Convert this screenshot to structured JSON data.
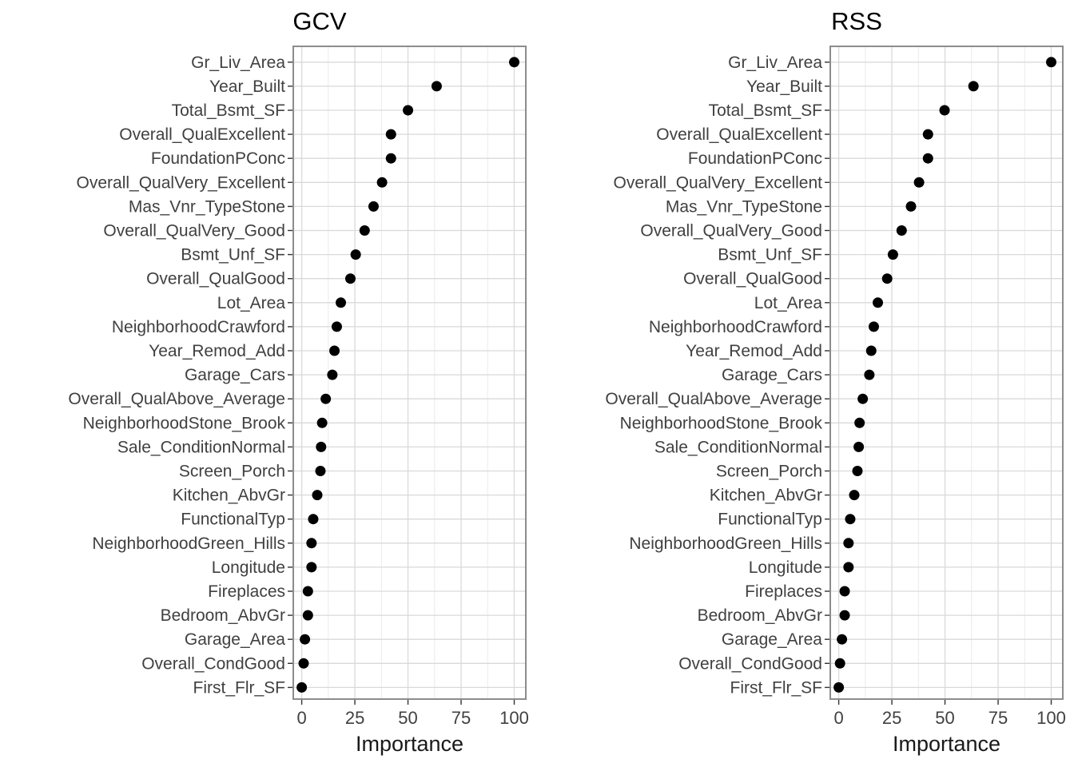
{
  "figure": {
    "background": "#ffffff",
    "panel_count": 2
  },
  "chart_data": [
    {
      "type": "scatter",
      "subtype": "cleveland-dot-plot",
      "title": "GCV",
      "xlabel": "Importance",
      "ylabel": "",
      "xlim": [
        0,
        100
      ],
      "xticks": [
        0,
        25,
        50,
        75,
        100
      ],
      "grid": "major-and-minor-x, major-y",
      "legend_position": "none",
      "categories": [
        "Gr_Liv_Area",
        "Year_Built",
        "Total_Bsmt_SF",
        "Overall_QualExcellent",
        "FoundationPConc",
        "Overall_QualVery_Excellent",
        "Mas_Vnr_TypeStone",
        "Overall_QualVery_Good",
        "Bsmt_Unf_SF",
        "Overall_QualGood",
        "Lot_Area",
        "NeighborhoodCrawford",
        "Year_Remod_Add",
        "Garage_Cars",
        "Overall_QualAbove_Average",
        "NeighborhoodStone_Brook",
        "Sale_ConditionNormal",
        "Screen_Porch",
        "Kitchen_AbvGr",
        "FunctionalTyp",
        "NeighborhoodGreen_Hills",
        "Longitude",
        "Fireplaces",
        "Bedroom_AbvGr",
        "Garage_Area",
        "Overall_CondGood",
        "First_Flr_SF"
      ],
      "values": [
        100,
        63.5,
        50,
        42,
        42,
        37.8,
        33.8,
        29.6,
        25.4,
        22.9,
        18.4,
        16.5,
        15.4,
        14.4,
        11.3,
        9.6,
        9.1,
        8.8,
        7.3,
        5.4,
        4.6,
        4.6,
        2.9,
        2.9,
        1.5,
        0.9,
        0
      ],
      "colors": {
        "dot": "#000000",
        "title_text": "#000000",
        "axis_text": "#404040",
        "axis_title_text": "#1a1a1a",
        "panel_border": "#8c8c8c",
        "grid_major": "#d9d9d9",
        "grid_minor": "#ebebeb",
        "tick_mark": "#333333",
        "panel_background": "#ffffff"
      }
    },
    {
      "type": "scatter",
      "subtype": "cleveland-dot-plot",
      "title": "RSS",
      "xlabel": "Importance",
      "ylabel": "",
      "xlim": [
        0,
        100
      ],
      "xticks": [
        0,
        25,
        50,
        75,
        100
      ],
      "grid": "major-and-minor-x, major-y",
      "legend_position": "none",
      "categories": [
        "Gr_Liv_Area",
        "Year_Built",
        "Total_Bsmt_SF",
        "Overall_QualExcellent",
        "FoundationPConc",
        "Overall_QualVery_Excellent",
        "Mas_Vnr_TypeStone",
        "Overall_QualVery_Good",
        "Bsmt_Unf_SF",
        "Overall_QualGood",
        "Lot_Area",
        "NeighborhoodCrawford",
        "Year_Remod_Add",
        "Garage_Cars",
        "Overall_QualAbove_Average",
        "NeighborhoodStone_Brook",
        "Sale_ConditionNormal",
        "Screen_Porch",
        "Kitchen_AbvGr",
        "FunctionalTyp",
        "NeighborhoodGreen_Hills",
        "Longitude",
        "Fireplaces",
        "Bedroom_AbvGr",
        "Garage_Area",
        "Overall_CondGood",
        "First_Flr_SF"
      ],
      "values": [
        100,
        63.4,
        49.8,
        42,
        42,
        37.8,
        34,
        29.6,
        25.5,
        22.8,
        18.4,
        16.5,
        15.3,
        14.4,
        11.3,
        9.8,
        9.4,
        8.8,
        7.3,
        5.4,
        4.6,
        4.6,
        2.8,
        2.8,
        1.5,
        0.6,
        0
      ]
    }
  ]
}
